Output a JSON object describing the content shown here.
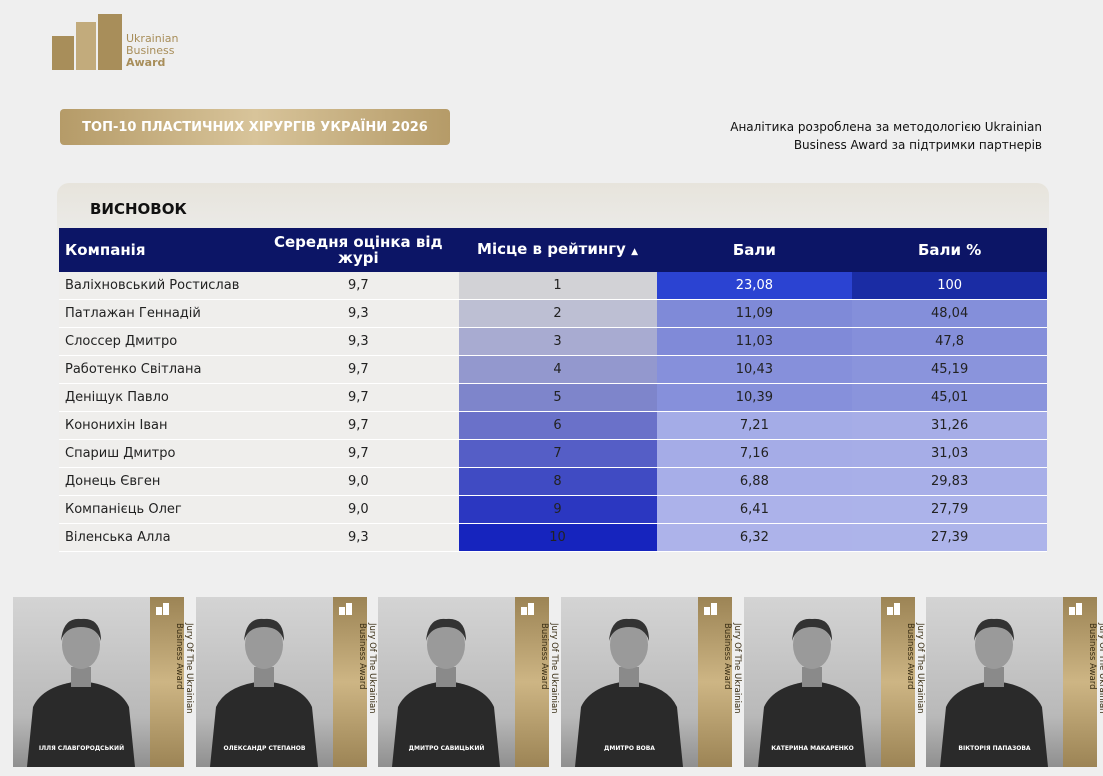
{
  "logo": {
    "lines": [
      "Ukrainian",
      "Business",
      "Award"
    ]
  },
  "header": {
    "title": "ТОП-10 ПЛАСТИЧНИХ ХІРУРГІВ УКРАЇНИ 2026",
    "note": [
      "Аналітика розроблена за методологією Ukrainian",
      "Business Award за підтримки партнерів"
    ]
  },
  "section": {
    "title": "ВИСНОВОК"
  },
  "table": {
    "columns": [
      "Компанія",
      "Середня оцінка від журі",
      "Місце в рейтингу",
      "Бали",
      "Бали %"
    ],
    "rows": [
      [
        "Валіхновський Ростислав",
        "9,7",
        "1",
        "23,08",
        "100"
      ],
      [
        "Патлажан Геннадій",
        "9,3",
        "2",
        "11,09",
        "48,04"
      ],
      [
        "Слоссер Дмитро",
        "9,3",
        "3",
        "11,03",
        "47,8"
      ],
      [
        "Работенко Світлана",
        "9,7",
        "4",
        "10,43",
        "45,19"
      ],
      [
        "Деніщук Павло",
        "9,7",
        "5",
        "10,39",
        "45,01"
      ],
      [
        "Кононихін Іван",
        "9,7",
        "6",
        "7,21",
        "31,26"
      ],
      [
        "Спариш Дмитро",
        "9,7",
        "7",
        "7,16",
        "31,03"
      ],
      [
        "Донець Євген",
        "9,0",
        "8",
        "6,88",
        "29,83"
      ],
      [
        "Компанієць Олег",
        "9,0",
        "9",
        "6,41",
        "27,79"
      ],
      [
        "Віленська Алла",
        "9,3",
        "10",
        "6,32",
        "27,39"
      ]
    ]
  },
  "jury": {
    "caption": "Jury Of The Ukrainian Business Award",
    "members": [
      "ІЛЛЯ СЛАВГОРОДСЬКИЙ",
      "ОЛЕКСАНДР СТЕПАНОВ",
      "ДМИТРО САВИЦЬКИЙ",
      "ДМИТРО ВОВА",
      "КАТЕРИНА МАКАРЕНКО",
      "ВІКТОРІЯ ПАПАЗОВА"
    ]
  }
}
